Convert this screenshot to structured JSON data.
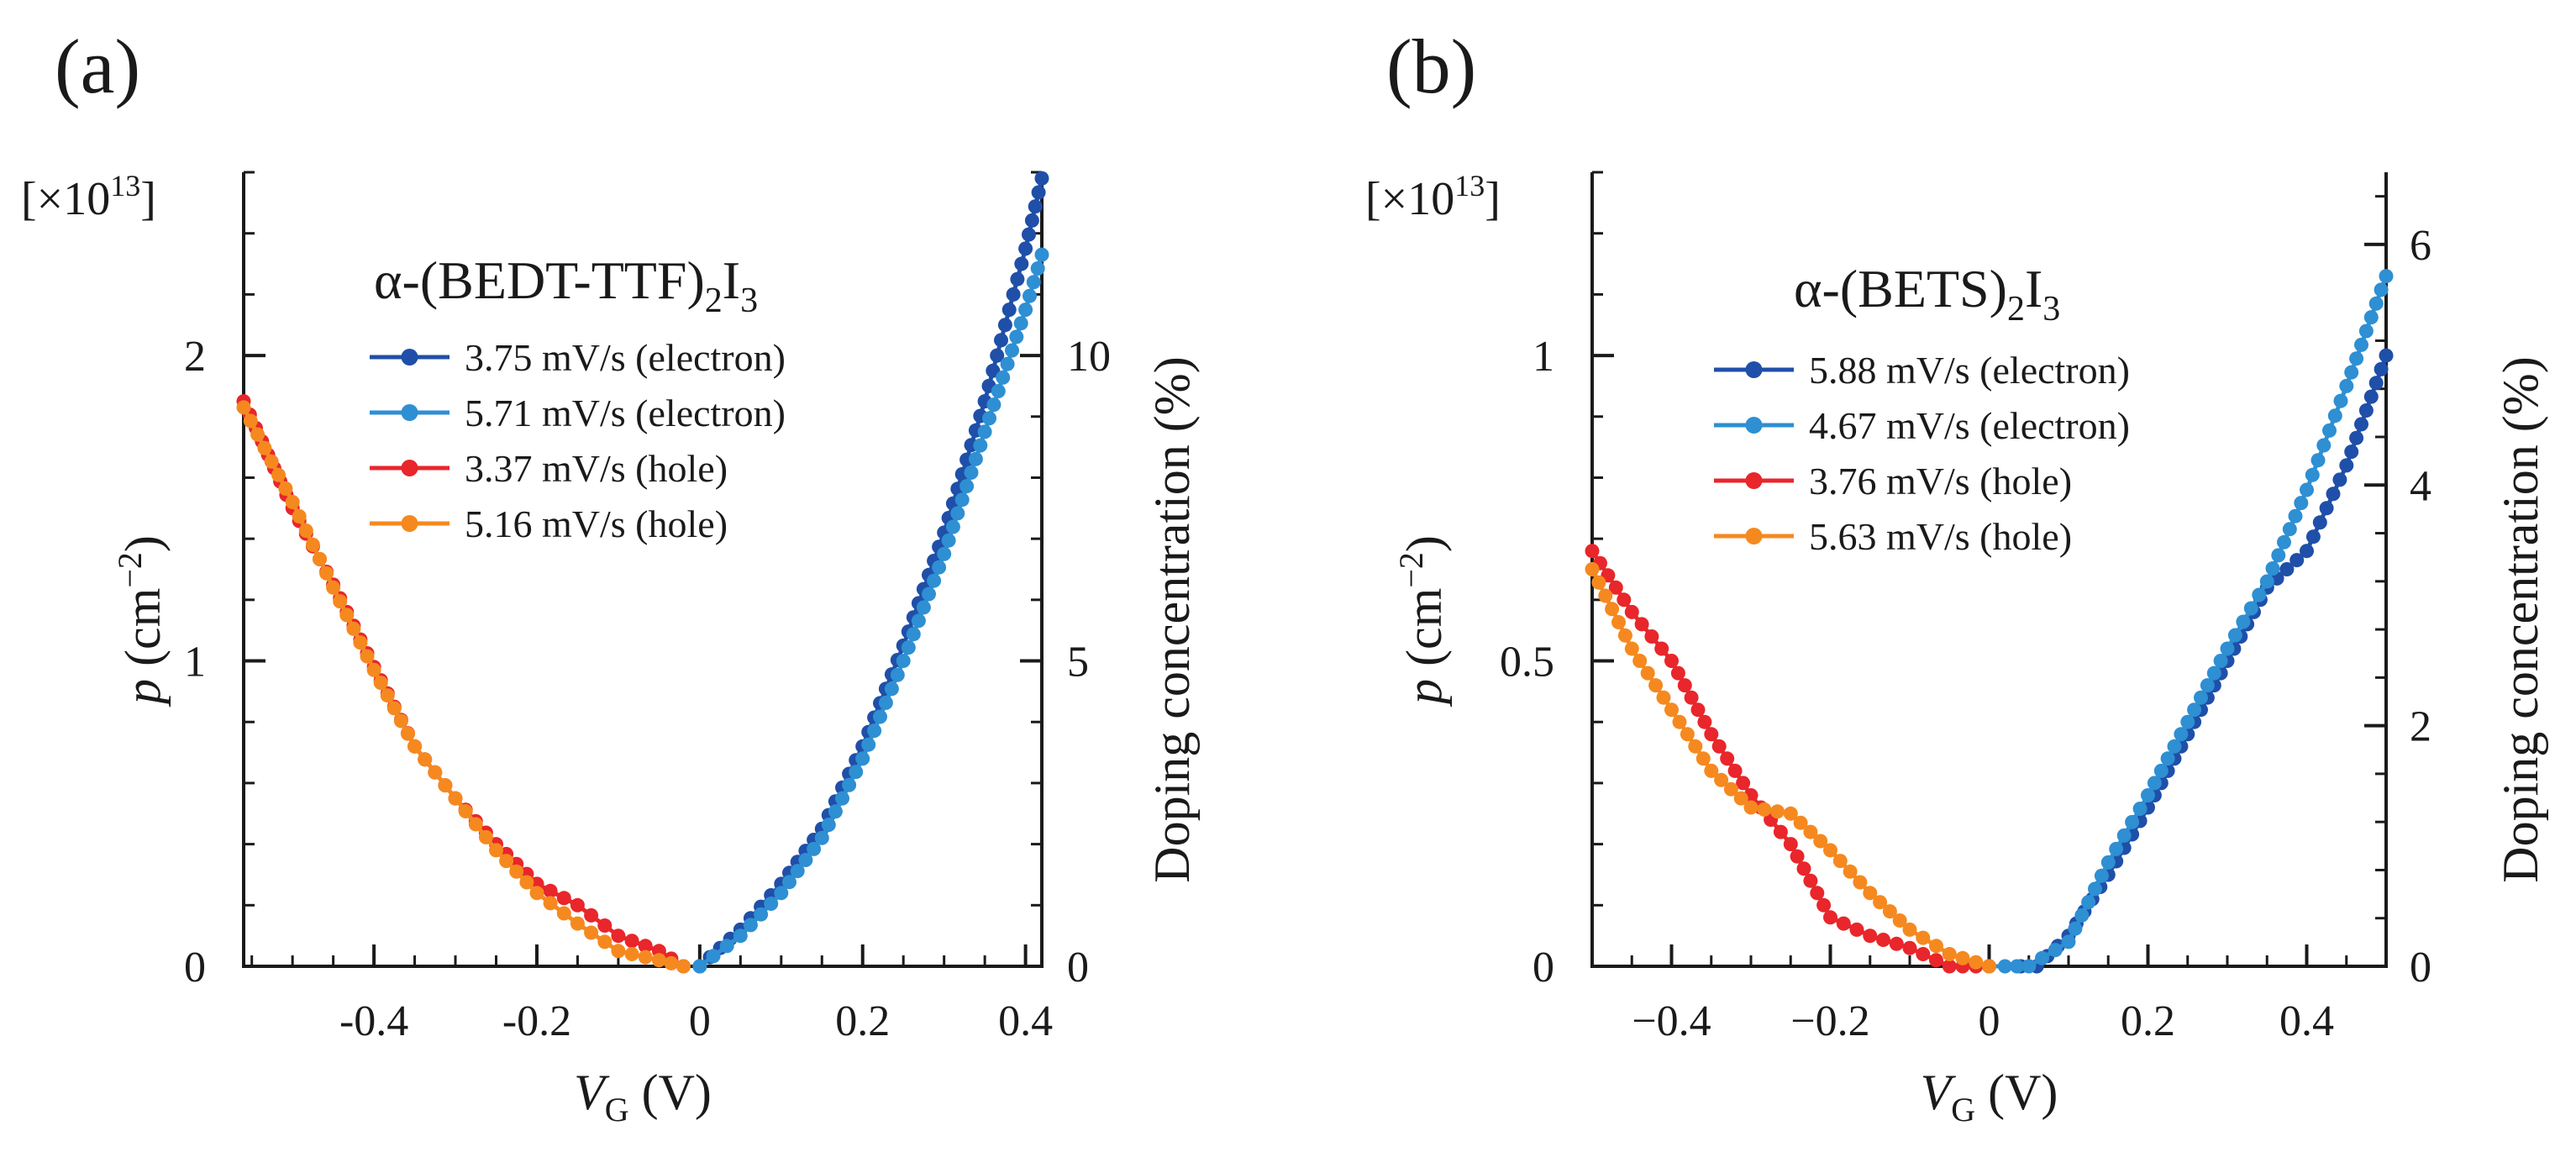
{
  "chart_data": [
    {
      "type": "line",
      "panel_label": "(a)",
      "compound": {
        "base": "α-(BEDT-TTF)",
        "sub1": "2",
        "mid": "I",
        "sub2": "3"
      },
      "multiplier": {
        "pre": "[×10",
        "exp": "13",
        "post": "]"
      },
      "xlabel": {
        "main": "V",
        "sub": "G",
        "unit": " (V)"
      },
      "ylabel": {
        "main": "p",
        "unit": " (cm",
        "exp": "−2",
        "close": ")"
      },
      "y2label": "Doping concentration (%)",
      "xlim": [
        -0.56,
        0.42
      ],
      "ylim": [
        0,
        2.6
      ],
      "y2lim": [
        0,
        13.0
      ],
      "xticks": [
        -0.4,
        -0.2,
        0,
        0.2,
        0.4
      ],
      "xtick_labels": [
        "-0.4",
        "-0.2",
        "0",
        "0.2",
        "0.4"
      ],
      "yticks": [
        0,
        1,
        2
      ],
      "ytick_labels": [
        "0",
        "1",
        "2"
      ],
      "y2ticks": [
        0,
        5,
        10
      ],
      "y2tick_labels": [
        "0",
        "5",
        "10"
      ],
      "series": [
        {
          "name": "3.75 mV/s (electron)",
          "color": "#1f4fa8",
          "x": [
            0,
            0.05,
            0.1,
            0.15,
            0.2,
            0.25,
            0.3,
            0.35,
            0.4,
            0.42
          ],
          "y": [
            0,
            0.12,
            0.27,
            0.45,
            0.72,
            1.05,
            1.42,
            1.85,
            2.35,
            2.58
          ]
        },
        {
          "name": "5.71 mV/s (electron)",
          "color": "#2e8fd3",
          "x": [
            0,
            0.05,
            0.1,
            0.15,
            0.2,
            0.25,
            0.3,
            0.35,
            0.4,
            0.42
          ],
          "y": [
            0,
            0.1,
            0.24,
            0.42,
            0.68,
            1.0,
            1.35,
            1.75,
            2.15,
            2.33
          ]
        },
        {
          "name": "3.37 mV/s (hole)",
          "color": "#e8262b",
          "x": [
            -0.56,
            -0.5,
            -0.45,
            -0.4,
            -0.35,
            -0.3,
            -0.25,
            -0.2,
            -0.15,
            -0.1,
            -0.05,
            -0.02
          ],
          "y": [
            1.85,
            1.5,
            1.25,
            0.98,
            0.72,
            0.55,
            0.4,
            0.27,
            0.2,
            0.1,
            0.05,
            0.0
          ]
        },
        {
          "name": "5.16 mV/s (hole)",
          "color": "#f5891f",
          "x": [
            -0.56,
            -0.5,
            -0.45,
            -0.4,
            -0.35,
            -0.3,
            -0.25,
            -0.2,
            -0.15,
            -0.1,
            -0.05,
            -0.02
          ],
          "y": [
            1.83,
            1.52,
            1.24,
            0.97,
            0.72,
            0.55,
            0.38,
            0.24,
            0.14,
            0.05,
            0.02,
            0.0
          ]
        }
      ]
    },
    {
      "type": "line",
      "panel_label": "(b)",
      "compound": {
        "base": "α-(BETS)",
        "sub1": "2",
        "mid": "I",
        "sub2": "3"
      },
      "multiplier": {
        "pre": "[×10",
        "exp": "13",
        "post": "]"
      },
      "xlabel": {
        "main": "V",
        "sub": "G",
        "unit": " (V)"
      },
      "ylabel": {
        "main": "p",
        "unit": " (cm",
        "exp": "−2",
        "close": ")"
      },
      "y2label": "Doping concentration (%)",
      "xlim": [
        -0.5,
        0.5
      ],
      "ylim": [
        0,
        1.3
      ],
      "y2lim": [
        0,
        6.6
      ],
      "xticks": [
        -0.4,
        -0.2,
        0,
        0.2,
        0.4
      ],
      "xtick_labels": [
        "−0.4",
        "−0.2",
        "0",
        "0.2",
        "0.4"
      ],
      "yticks": [
        0,
        0.5,
        1
      ],
      "ytick_labels": [
        "0",
        "0.5",
        "1"
      ],
      "y2ticks": [
        0,
        2,
        4,
        6
      ],
      "y2tick_labels": [
        "0",
        "2",
        "4",
        "6"
      ],
      "series": [
        {
          "name": "5.88 mV/s (electron)",
          "color": "#1f4fa8",
          "x": [
            0.04,
            0.06,
            0.1,
            0.15,
            0.2,
            0.25,
            0.3,
            0.35,
            0.4,
            0.45,
            0.5
          ],
          "y": [
            0.0,
            0.0,
            0.05,
            0.15,
            0.26,
            0.38,
            0.5,
            0.62,
            0.68,
            0.82,
            1.0
          ],
          "xl": 0.04
        },
        {
          "name": "4.67 mV/s (electron)",
          "color": "#2e8fd3",
          "x": [
            0.0,
            0.02,
            0.05,
            0.1,
            0.15,
            0.2,
            0.25,
            0.3,
            0.35,
            0.4,
            0.45,
            0.5
          ],
          "y": [
            0.0,
            0.0,
            0.0,
            0.04,
            0.17,
            0.28,
            0.4,
            0.52,
            0.63,
            0.78,
            0.95,
            1.13
          ]
        },
        {
          "name": "3.76 mV/s (hole)",
          "color": "#e8262b",
          "x": [
            -0.5,
            -0.45,
            -0.4,
            -0.35,
            -0.3,
            -0.25,
            -0.2,
            -0.15,
            -0.1,
            -0.05,
            0.0
          ],
          "y": [
            0.68,
            0.58,
            0.5,
            0.38,
            0.28,
            0.2,
            0.08,
            0.05,
            0.03,
            0.0,
            0.0
          ]
        },
        {
          "name": "5.63 mV/s (hole)",
          "color": "#f5891f",
          "x": [
            -0.5,
            -0.45,
            -0.4,
            -0.35,
            -0.3,
            -0.25,
            -0.2,
            -0.15,
            -0.1,
            -0.05,
            0.0
          ],
          "y": [
            0.65,
            0.52,
            0.42,
            0.32,
            0.26,
            0.25,
            0.19,
            0.12,
            0.06,
            0.02,
            0.0
          ]
        }
      ]
    }
  ]
}
